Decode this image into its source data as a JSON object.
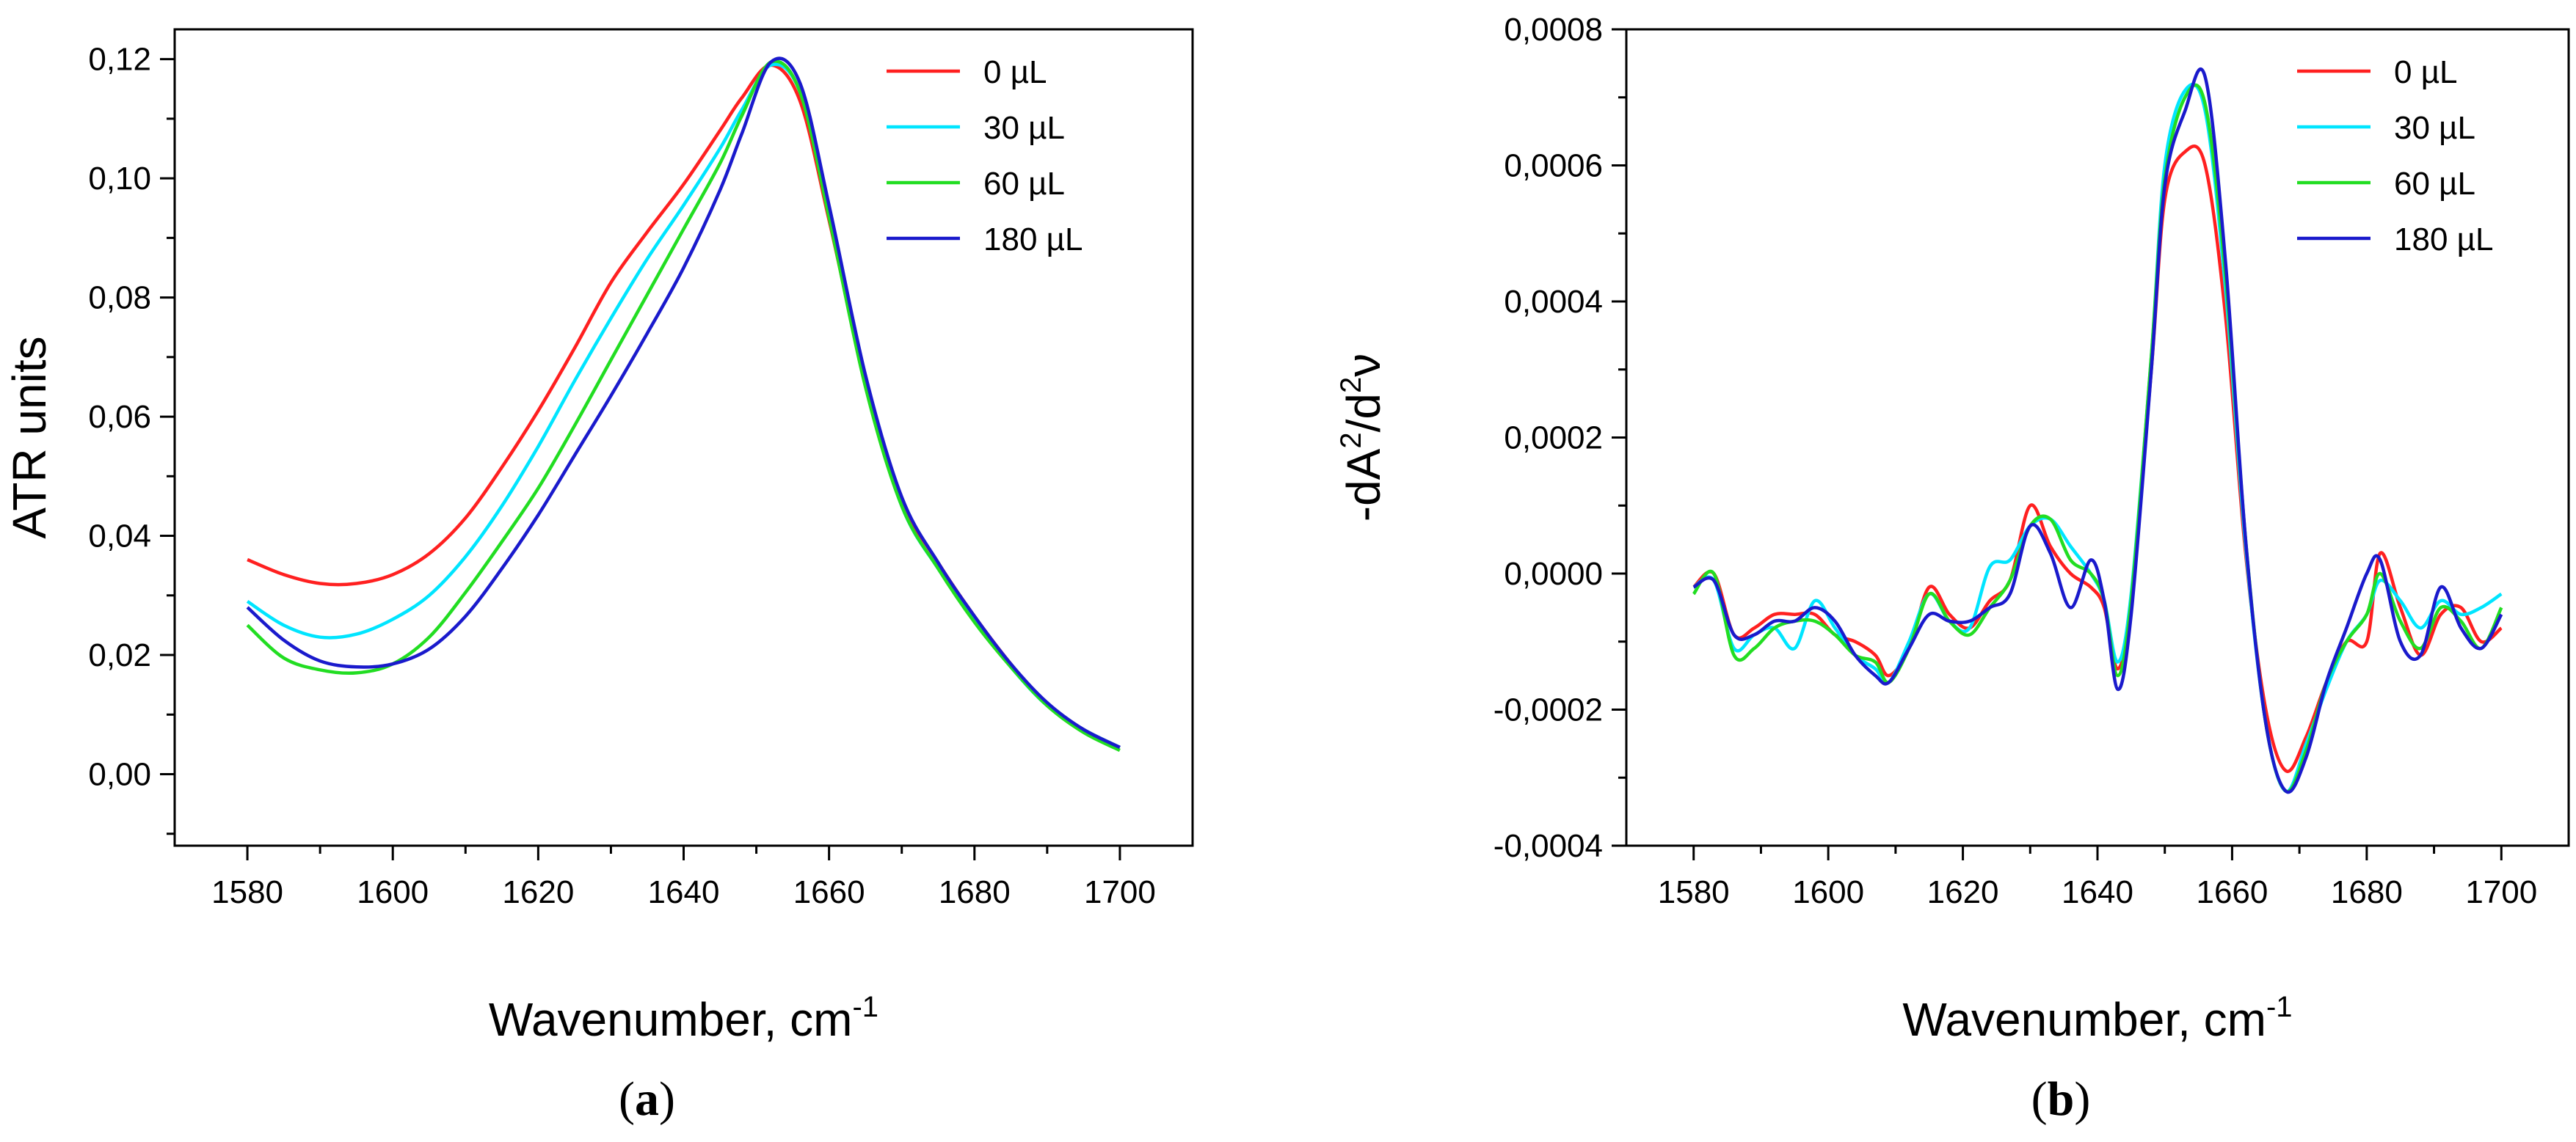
{
  "chart_data": [
    {
      "id": "a",
      "type": "line",
      "panel_label": {
        "open": "(",
        "letter": "a",
        "close": ")"
      },
      "xlabel": {
        "text": "Wavenumber, cm",
        "sup": "-1"
      },
      "ylabel": {
        "text": "ATR units"
      },
      "xlim": [
        1570,
        1710
      ],
      "ylim": [
        -0.012,
        0.125
      ],
      "xticks": [
        1580,
        1600,
        1620,
        1640,
        1660,
        1680,
        1700
      ],
      "xtick_labels": [
        "1580",
        "1600",
        "1620",
        "1640",
        "1660",
        "1680",
        "1700"
      ],
      "yticks": [
        0.0,
        0.02,
        0.04,
        0.06,
        0.08,
        0.1,
        0.12
      ],
      "ytick_labels": [
        "0,00",
        "0,02",
        "0,04",
        "0,06",
        "0,08",
        "0,10",
        "0,12"
      ],
      "legend_position": "top-right",
      "series": [
        {
          "name": "0 µL",
          "color": "#ff2020",
          "x": [
            1580,
            1585,
            1590,
            1595,
            1600,
            1605,
            1610,
            1615,
            1620,
            1625,
            1630,
            1635,
            1640,
            1645,
            1648,
            1652,
            1656,
            1660,
            1665,
            1670,
            1675,
            1680,
            1685,
            1690,
            1695,
            1700
          ],
          "y": [
            0.036,
            0.0335,
            0.032,
            0.032,
            0.0335,
            0.037,
            0.043,
            0.0515,
            0.061,
            0.0715,
            0.0825,
            0.091,
            0.099,
            0.108,
            0.1135,
            0.119,
            0.113,
            0.093,
            0.066,
            0.046,
            0.0355,
            0.0265,
            0.0185,
            0.0115,
            0.0075,
            0.0045
          ]
        },
        {
          "name": "30 µL",
          "color": "#00e5ff",
          "x": [
            1580,
            1585,
            1590,
            1595,
            1600,
            1605,
            1610,
            1615,
            1620,
            1625,
            1630,
            1635,
            1640,
            1645,
            1648,
            1652,
            1656,
            1660,
            1665,
            1670,
            1675,
            1680,
            1685,
            1690,
            1695,
            1700
          ],
          "y": [
            0.029,
            0.025,
            0.023,
            0.0235,
            0.026,
            0.03,
            0.0365,
            0.045,
            0.055,
            0.066,
            0.0765,
            0.0865,
            0.0955,
            0.105,
            0.1115,
            0.119,
            0.1145,
            0.094,
            0.0655,
            0.045,
            0.0345,
            0.026,
            0.018,
            0.0115,
            0.0075,
            0.0045
          ]
        },
        {
          "name": "60 µL",
          "color": "#22dd22",
          "x": [
            1580,
            1585,
            1590,
            1595,
            1600,
            1605,
            1610,
            1615,
            1620,
            1625,
            1630,
            1635,
            1640,
            1645,
            1648,
            1652,
            1656,
            1660,
            1665,
            1670,
            1675,
            1680,
            1685,
            1690,
            1695,
            1700
          ],
          "y": [
            0.025,
            0.0195,
            0.0175,
            0.017,
            0.0185,
            0.023,
            0.0305,
            0.039,
            0.048,
            0.0585,
            0.0695,
            0.0805,
            0.0915,
            0.1025,
            0.1105,
            0.1195,
            0.1145,
            0.0935,
            0.065,
            0.045,
            0.0345,
            0.0255,
            0.018,
            0.0115,
            0.007,
            0.004
          ]
        },
        {
          "name": "180 µL",
          "color": "#1a1acc",
          "x": [
            1580,
            1585,
            1590,
            1595,
            1600,
            1605,
            1610,
            1615,
            1620,
            1625,
            1630,
            1635,
            1640,
            1645,
            1648,
            1652,
            1656,
            1660,
            1665,
            1670,
            1675,
            1680,
            1685,
            1690,
            1695,
            1700
          ],
          "y": [
            0.028,
            0.0225,
            0.019,
            0.018,
            0.0185,
            0.021,
            0.0265,
            0.0345,
            0.0435,
            0.0535,
            0.0635,
            0.074,
            0.085,
            0.098,
            0.1075,
            0.1195,
            0.116,
            0.0955,
            0.067,
            0.0465,
            0.0355,
            0.0265,
            0.0185,
            0.012,
            0.0075,
            0.0045
          ]
        }
      ]
    },
    {
      "id": "b",
      "type": "line",
      "panel_label": {
        "open": "(",
        "letter": "b",
        "close": ")"
      },
      "xlabel": {
        "text": "Wavenumber, cm",
        "sup": "-1"
      },
      "ylabel": {
        "pre": "-dA",
        "sup1": "2",
        "mid": "/d",
        "sup2": "2",
        "post": "ν"
      },
      "xlim": [
        1570,
        1710
      ],
      "ylim": [
        -0.0004,
        0.0008
      ],
      "xticks": [
        1580,
        1600,
        1620,
        1640,
        1660,
        1680,
        1700
      ],
      "xtick_labels": [
        "1580",
        "1600",
        "1620",
        "1640",
        "1660",
        "1680",
        "1700"
      ],
      "yticks": [
        -0.0004,
        -0.0002,
        0.0,
        0.0002,
        0.0004,
        0.0006,
        0.0008
      ],
      "ytick_labels": [
        "-0,0004",
        "-0,0002",
        "0,0000",
        "0,0002",
        "0,0004",
        "0,0006",
        "0,0008"
      ],
      "legend_position": "top-right",
      "series": [
        {
          "name": "0 µL",
          "color": "#ff2020",
          "x": [
            1580,
            1583,
            1586,
            1589,
            1592,
            1595,
            1598,
            1601,
            1604,
            1607,
            1609,
            1612,
            1615,
            1618,
            1621,
            1624,
            1627,
            1630,
            1633,
            1636,
            1639,
            1641,
            1643,
            1645,
            1648,
            1650,
            1653,
            1656,
            1659,
            1662,
            1665,
            1668,
            1671,
            1674,
            1677,
            1680,
            1682,
            1685,
            1688,
            1691,
            1694,
            1697,
            1700
          ],
          "y": [
            -2e-05,
            0.0,
            -9e-05,
            -8e-05,
            -6e-05,
            -6e-05,
            -6e-05,
            -9e-05,
            -0.0001,
            -0.00012,
            -0.00015,
            -0.00011,
            -2e-05,
            -6e-05,
            -8e-05,
            -4e-05,
            -1e-05,
            0.0001,
            4e-05,
            0.0,
            -2e-05,
            -5e-05,
            -0.00014,
            -4e-05,
            0.0003,
            0.00055,
            0.00062,
            0.0006,
            0.00038,
            3e-05,
            -0.0002,
            -0.00029,
            -0.00024,
            -0.00016,
            -0.0001,
            -0.0001,
            3e-05,
            -5e-05,
            -0.00012,
            -6e-05,
            -5e-05,
            -0.0001,
            -8e-05
          ]
        },
        {
          "name": "30 µL",
          "color": "#00e5ff",
          "x": [
            1580,
            1583,
            1586,
            1589,
            1592,
            1595,
            1598,
            1601,
            1604,
            1607,
            1609,
            1612,
            1615,
            1618,
            1621,
            1624,
            1627,
            1630,
            1633,
            1636,
            1639,
            1641,
            1643,
            1645,
            1648,
            1650,
            1653,
            1656,
            1659,
            1662,
            1665,
            1668,
            1671,
            1674,
            1677,
            1680,
            1682,
            1685,
            1688,
            1691,
            1694,
            1697,
            1700
          ],
          "y": [
            -2e-05,
            -1e-05,
            -0.00011,
            -9e-05,
            -8e-05,
            -0.00011,
            -4e-05,
            -8e-05,
            -0.00012,
            -0.00014,
            -0.00016,
            -0.0001,
            -3e-05,
            -7e-05,
            -8e-05,
            1e-05,
            2e-05,
            7e-05,
            8e-05,
            4e-05,
            0.0,
            -4e-05,
            -0.00013,
            -3e-05,
            0.00032,
            0.0006,
            0.00071,
            0.00068,
            0.00042,
            4e-05,
            -0.00022,
            -0.00032,
            -0.00025,
            -0.00017,
            -0.0001,
            -6e-05,
            -1e-05,
            -4e-05,
            -8e-05,
            -4e-05,
            -6e-05,
            -5e-05,
            -3e-05
          ]
        },
        {
          "name": "60 µL",
          "color": "#22dd22",
          "x": [
            1580,
            1583,
            1586,
            1589,
            1592,
            1595,
            1598,
            1601,
            1604,
            1607,
            1609,
            1612,
            1615,
            1618,
            1621,
            1624,
            1627,
            1630,
            1633,
            1636,
            1639,
            1641,
            1643,
            1645,
            1648,
            1650,
            1653,
            1656,
            1659,
            1662,
            1665,
            1668,
            1671,
            1674,
            1677,
            1680,
            1682,
            1685,
            1688,
            1691,
            1694,
            1697,
            1700
          ],
          "y": [
            -3e-05,
            0.0,
            -0.00012,
            -0.00011,
            -8e-05,
            -7e-05,
            -7e-05,
            -9e-05,
            -0.00012,
            -0.00013,
            -0.00016,
            -0.00011,
            -3e-05,
            -7e-05,
            -9e-05,
            -5e-05,
            -1e-05,
            7e-05,
            8e-05,
            2e-05,
            0.0,
            -4e-05,
            -0.00015,
            -4e-05,
            0.00032,
            0.00058,
            0.0007,
            0.00069,
            0.00044,
            5e-05,
            -0.00022,
            -0.00032,
            -0.00026,
            -0.00016,
            -0.0001,
            -6e-05,
            0.0,
            -7e-05,
            -0.00011,
            -5e-05,
            -7e-05,
            -0.00011,
            -5e-05
          ]
        },
        {
          "name": "180 µL",
          "color": "#1a1acc",
          "x": [
            1580,
            1583,
            1586,
            1589,
            1592,
            1595,
            1598,
            1601,
            1604,
            1607,
            1609,
            1612,
            1615,
            1618,
            1621,
            1624,
            1627,
            1630,
            1633,
            1636,
            1639,
            1641,
            1643,
            1645,
            1648,
            1650,
            1653,
            1656,
            1659,
            1662,
            1665,
            1668,
            1671,
            1674,
            1677,
            1680,
            1682,
            1685,
            1688,
            1691,
            1694,
            1697,
            1700
          ],
          "y": [
            -2e-05,
            -1e-05,
            -9e-05,
            -9e-05,
            -7e-05,
            -7e-05,
            -5e-05,
            -7e-05,
            -0.00012,
            -0.00015,
            -0.00016,
            -0.00011,
            -6e-05,
            -7e-05,
            -7e-05,
            -5e-05,
            -3e-05,
            7e-05,
            3e-05,
            -5e-05,
            2e-05,
            -4e-05,
            -0.00017,
            -6e-05,
            0.0003,
            0.00057,
            0.00068,
            0.00073,
            0.00046,
            5e-05,
            -0.00022,
            -0.00032,
            -0.00027,
            -0.00016,
            -8e-05,
            0.0,
            2e-05,
            -0.0001,
            -0.00012,
            -2e-05,
            -8e-05,
            -0.00011,
            -6e-05
          ]
        }
      ]
    }
  ]
}
